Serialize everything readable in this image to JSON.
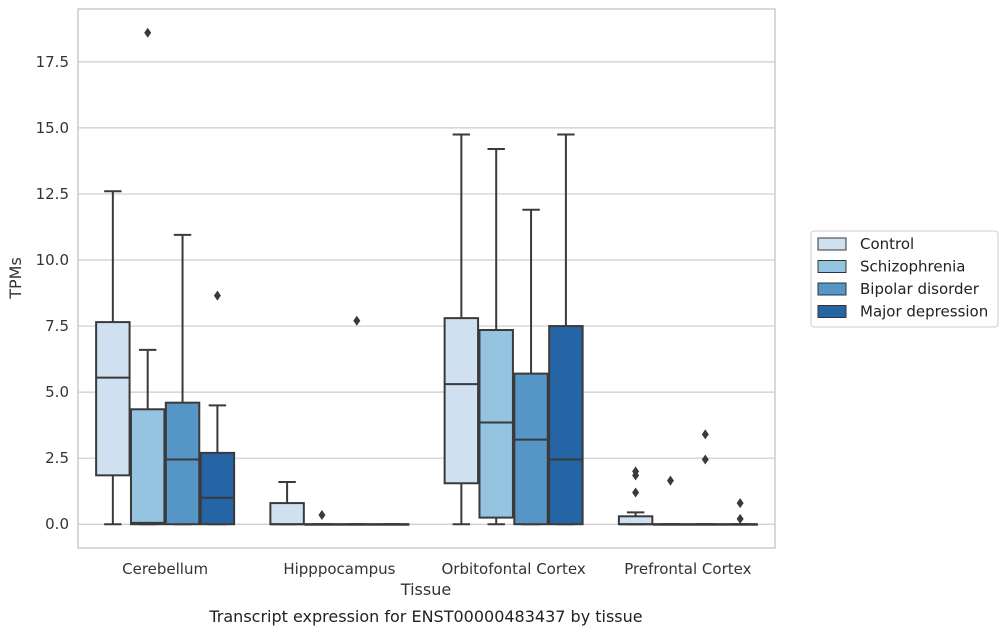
{
  "caption": "Transcript expression for ENST00000483437 by tissue",
  "chart_data": {
    "type": "boxplot",
    "xlabel": "Tissue",
    "ylabel": "TPMs",
    "ylim": [
      -0.9,
      19.5
    ],
    "yticks": [
      "0.0",
      "2.5",
      "5.0",
      "7.5",
      "10.0",
      "12.5",
      "15.0",
      "17.5"
    ],
    "grid": "horizontal",
    "legend_position": "right",
    "categories": [
      "Cerebellum",
      "Hipppocampus",
      "Orbitofontal Cortex",
      "Prefrontal Cortex"
    ],
    "series": [
      {
        "name": "Control",
        "color": "#cfe0f0",
        "boxes": [
          {
            "q1": 1.85,
            "median": 5.55,
            "q3": 7.65,
            "whisker_low": 0.0,
            "whisker_high": 12.6,
            "outliers": []
          },
          {
            "q1": 0.0,
            "median": 0.0,
            "q3": 0.8,
            "whisker_low": 0.0,
            "whisker_high": 1.6,
            "outliers": []
          },
          {
            "q1": 1.55,
            "median": 5.3,
            "q3": 7.8,
            "whisker_low": 0.0,
            "whisker_high": 14.75,
            "outliers": []
          },
          {
            "q1": 0.0,
            "median": 0.0,
            "q3": 0.3,
            "whisker_low": 0.0,
            "whisker_high": 0.45,
            "outliers": [
              1.2,
              1.85,
              2.0
            ]
          }
        ]
      },
      {
        "name": "Schizophrenia",
        "color": "#94c4df",
        "boxes": [
          {
            "q1": 0.0,
            "median": 0.05,
            "q3": 4.35,
            "whisker_low": 0.0,
            "whisker_high": 6.6,
            "outliers": [
              18.6
            ]
          },
          {
            "q1": 0.0,
            "median": 0.0,
            "q3": 0.0,
            "whisker_low": 0.0,
            "whisker_high": 0.0,
            "outliers": [
              0.35
            ]
          },
          {
            "q1": 0.25,
            "median": 3.85,
            "q3": 7.35,
            "whisker_low": 0.0,
            "whisker_high": 14.2,
            "outliers": []
          },
          {
            "q1": 0.0,
            "median": 0.0,
            "q3": 0.0,
            "whisker_low": 0.0,
            "whisker_high": 0.0,
            "outliers": [
              1.65
            ]
          }
        ]
      },
      {
        "name": "Bipolar disorder",
        "color": "#5596c6",
        "boxes": [
          {
            "q1": 0.0,
            "median": 2.45,
            "q3": 4.6,
            "whisker_low": 0.0,
            "whisker_high": 10.95,
            "outliers": []
          },
          {
            "q1": 0.0,
            "median": 0.0,
            "q3": 0.0,
            "whisker_low": 0.0,
            "whisker_high": 0.0,
            "outliers": [
              7.7
            ]
          },
          {
            "q1": 0.0,
            "median": 3.2,
            "q3": 5.7,
            "whisker_low": 0.0,
            "whisker_high": 11.9,
            "outliers": []
          },
          {
            "q1": 0.0,
            "median": 0.0,
            "q3": 0.0,
            "whisker_low": 0.0,
            "whisker_high": 0.0,
            "outliers": [
              2.45,
              3.4
            ]
          }
        ]
      },
      {
        "name": "Major depression",
        "color": "#2565a6",
        "boxes": [
          {
            "q1": 0.0,
            "median": 1.0,
            "q3": 2.7,
            "whisker_low": 0.0,
            "whisker_high": 4.5,
            "outliers": [
              8.65
            ]
          },
          {
            "q1": 0.0,
            "median": 0.0,
            "q3": 0.0,
            "whisker_low": 0.0,
            "whisker_high": 0.0,
            "outliers": []
          },
          {
            "q1": 0.0,
            "median": 2.45,
            "q3": 7.5,
            "whisker_low": 0.0,
            "whisker_high": 14.75,
            "outliers": []
          },
          {
            "q1": 0.0,
            "median": 0.0,
            "q3": 0.0,
            "whisker_low": 0.0,
            "whisker_high": 0.0,
            "outliers": [
              0.2,
              0.8
            ]
          }
        ]
      }
    ]
  }
}
